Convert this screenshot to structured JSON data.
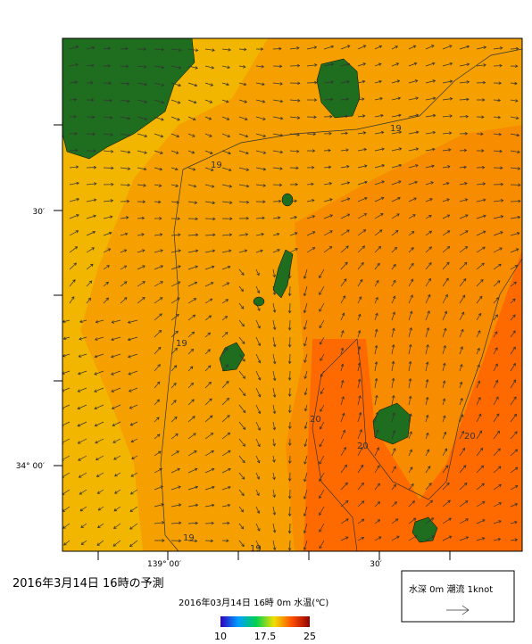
{
  "map": {
    "title": "2016年3月14日 16時の予測",
    "subtitle": "2016年03月14日 16時 0m 水温(℃)",
    "y_axis_labels": [
      "30′",
      "34° 00′"
    ],
    "x_axis_labels": [
      "139° 00′",
      "30′"
    ],
    "contour_labels": [
      "19",
      "19",
      "19",
      "19",
      "19",
      "20",
      "20",
      "20"
    ],
    "legend": "水深 0m 潮流 1knot",
    "colorbar": {
      "range": [
        10,
        25
      ],
      "ticks": [
        10,
        17.5,
        25
      ]
    }
  }
}
